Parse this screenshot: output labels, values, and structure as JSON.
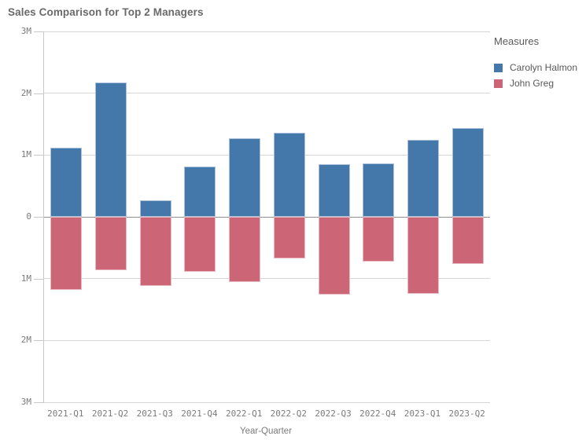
{
  "title": "Sales Comparison for Top 2 Managers",
  "colors": {
    "series_blue": "#4477aa",
    "series_red": "#cc6677",
    "gridline": "#d6d6d6",
    "zero_line": "#8f8f8f",
    "axis_line": "#c9c9c9",
    "tick_text": "#7b7b7b",
    "title_text": "#6a6a6a",
    "legend_text": "#595959",
    "background": "#ffffff"
  },
  "legend": {
    "title": "Measures",
    "items": [
      {
        "label": "Carolyn Halmon",
        "color": "#4477aa"
      },
      {
        "label": "John Greg",
        "color": "#cc6677"
      }
    ]
  },
  "chart_data": {
    "type": "bar",
    "subtype": "diverging-vertical",
    "title": "Sales Comparison for Top 2 Managers",
    "xlabel": "Year-Quarter",
    "ylabel": "",
    "unit": "millions",
    "ylim": [
      -3,
      3
    ],
    "grid": true,
    "legend_position": "right",
    "categories": [
      "2021-Q1",
      "2021-Q2",
      "2021-Q3",
      "2021-Q4",
      "2022-Q1",
      "2022-Q2",
      "2022-Q3",
      "2022-Q4",
      "2023-Q1",
      "2023-Q2"
    ],
    "yticks": [
      {
        "v": 3,
        "label": "3M"
      },
      {
        "v": 2,
        "label": "2M"
      },
      {
        "v": 1,
        "label": "1M"
      },
      {
        "v": 0,
        "label": "0"
      },
      {
        "v": -1,
        "label": "1M"
      },
      {
        "v": -2,
        "label": "2M"
      },
      {
        "v": -3,
        "label": "3M"
      }
    ],
    "series": [
      {
        "name": "Carolyn Halmon",
        "color": "#4477aa",
        "values": [
          1.12,
          2.18,
          0.27,
          0.81,
          1.27,
          1.36,
          0.85,
          0.87,
          1.24,
          1.44
        ]
      },
      {
        "name": "John Greg",
        "color": "#cc6677",
        "values": [
          -1.18,
          -0.86,
          -1.12,
          -0.89,
          -1.06,
          -0.68,
          -1.26,
          -0.72,
          -1.25,
          -0.76
        ]
      }
    ]
  }
}
